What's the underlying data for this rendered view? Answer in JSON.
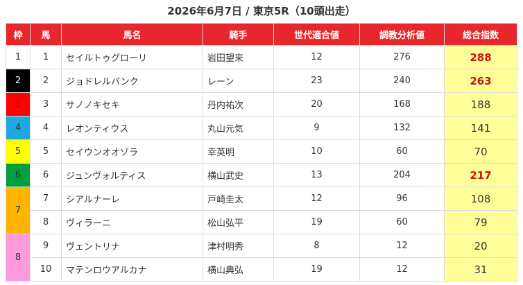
{
  "title": "2026年6月7日 / 東京5R（10頭出走）",
  "headers": [
    "枠",
    "馬",
    "馬名",
    "騎手",
    "世代適合値",
    "調教分析値",
    "総合指数"
  ],
  "frames": [
    {
      "label": "1",
      "color": "#ffffff",
      "text_color": "#333333",
      "horses": [
        {
          "number": "1",
          "name": "セイルトゥグローリ",
          "jockey": "岩田望来",
          "generation": 12,
          "training": 276,
          "total": 288,
          "emphasis": true
        }
      ]
    },
    {
      "label": "2",
      "color": "#000000",
      "text_color": "#ffffff",
      "horses": [
        {
          "number": "2",
          "name": "ジョドレルバンク",
          "jockey": "レーン",
          "generation": 23,
          "training": 240,
          "total": 263,
          "emphasis": true
        }
      ]
    },
    {
      "label": "3",
      "color": "#ff0000",
      "text_color": "#c00000",
      "horses": [
        {
          "number": "3",
          "name": "サノノキセキ",
          "jockey": "丹内祐次",
          "generation": 20,
          "training": 168,
          "total": 188,
          "emphasis": false
        }
      ]
    },
    {
      "label": "4",
      "color": "#1ea7e1",
      "text_color": "#333333",
      "horses": [
        {
          "number": "4",
          "name": "レオンティウス",
          "jockey": "丸山元気",
          "generation": 9,
          "training": 132,
          "total": 141,
          "emphasis": false
        }
      ]
    },
    {
      "label": "5",
      "color": "#ffff00",
      "text_color": "#333333",
      "horses": [
        {
          "number": "5",
          "name": "セイウンオオゾラ",
          "jockey": "幸英明",
          "generation": 10,
          "training": 60,
          "total": 70,
          "emphasis": false
        }
      ]
    },
    {
      "label": "6",
      "color": "#00a040",
      "text_color": "#333333",
      "horses": [
        {
          "number": "6",
          "name": "ジュンヴォルティス",
          "jockey": "横山武史",
          "generation": 13,
          "training": 204,
          "total": 217,
          "emphasis": true
        }
      ]
    },
    {
      "label": "7",
      "color": "#ffb400",
      "text_color": "#333333",
      "horses": [
        {
          "number": "7",
          "name": "シアルナーレ",
          "jockey": "戸崎圭太",
          "generation": 12,
          "training": 96,
          "total": 108,
          "emphasis": false
        },
        {
          "number": "8",
          "name": "ヴィラーニ",
          "jockey": "松山弘平",
          "generation": 19,
          "training": 60,
          "total": 79,
          "emphasis": false
        }
      ]
    },
    {
      "label": "8",
      "color": "#ff99dd",
      "text_color": "#333333",
      "horses": [
        {
          "number": "9",
          "name": "ヴェントリナ",
          "jockey": "津村明秀",
          "generation": 8,
          "training": 12,
          "total": 20,
          "emphasis": false
        },
        {
          "number": "10",
          "name": "マテンロウアルカナ",
          "jockey": "横山典弘",
          "generation": 19,
          "training": 12,
          "total": 31,
          "emphasis": false
        }
      ]
    }
  ]
}
